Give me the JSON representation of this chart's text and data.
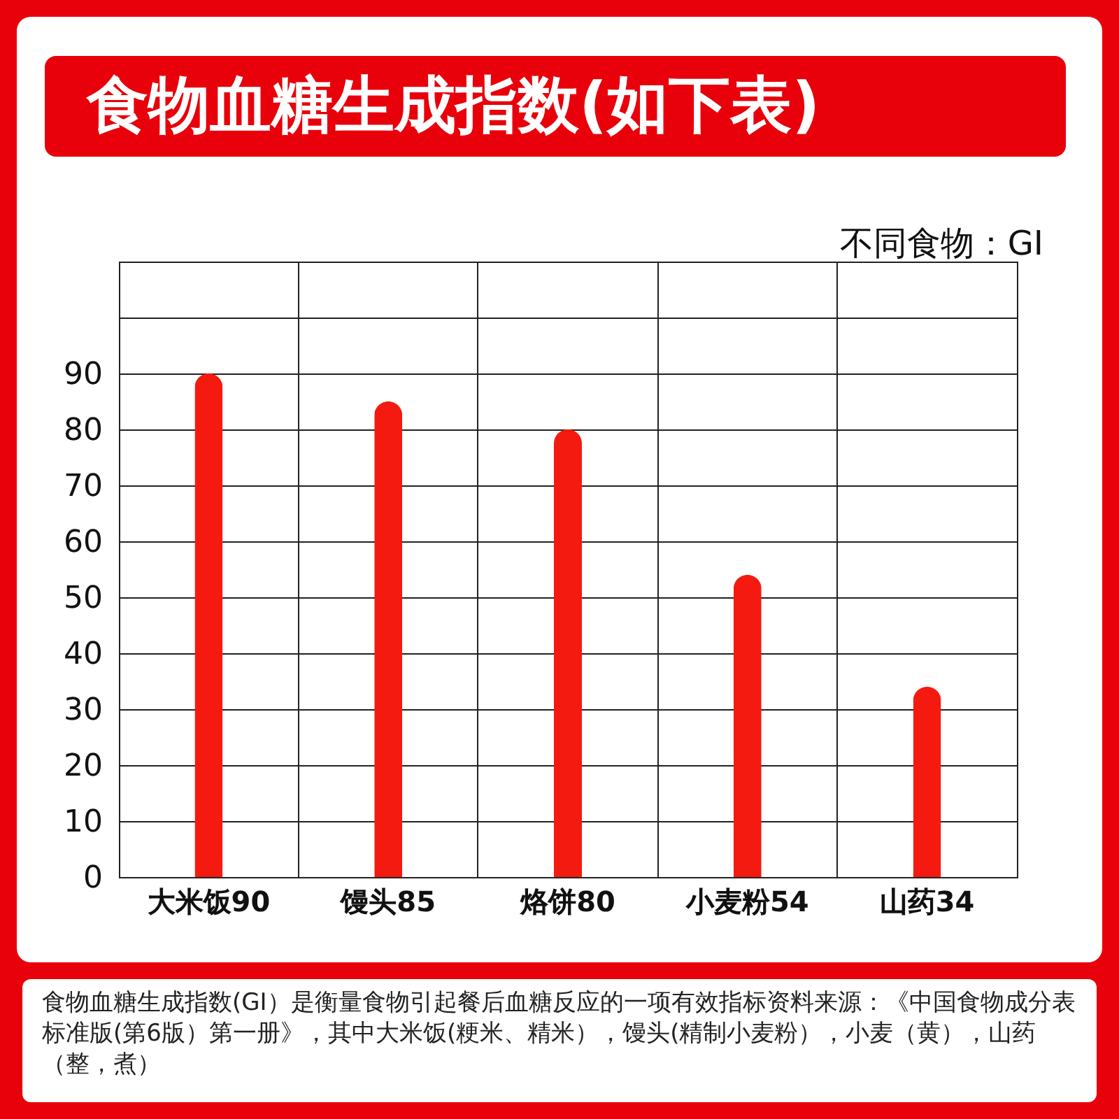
{
  "chart_data": {
    "type": "bar",
    "title": "食物血糖生成指数(如下表)",
    "ylabel": "不同食物：GI",
    "categories": [
      "大米饭90",
      "馒头85",
      "烙饼80",
      "小麦粉54",
      "山药34"
    ],
    "values": [
      90,
      85,
      80,
      54,
      34
    ],
    "color": "#f41a10",
    "ylim": [
      0,
      110
    ],
    "yticks": [
      0,
      10,
      20,
      30,
      40,
      50,
      60,
      70,
      80,
      90,
      {
        "value": 100,
        "label": null
      }
    ],
    "grid": true,
    "annotations": [
      "食物血糖生成指数(GI）是衡量食物引起餐后血糖反应的一项有效指标资料来源：《中国食物成分表标准版(第6版）第一册》，其中大米饭(粳米、精米），馒头(精制小麦粉），小麦（黄），山药（整，煮）"
    ]
  }
}
